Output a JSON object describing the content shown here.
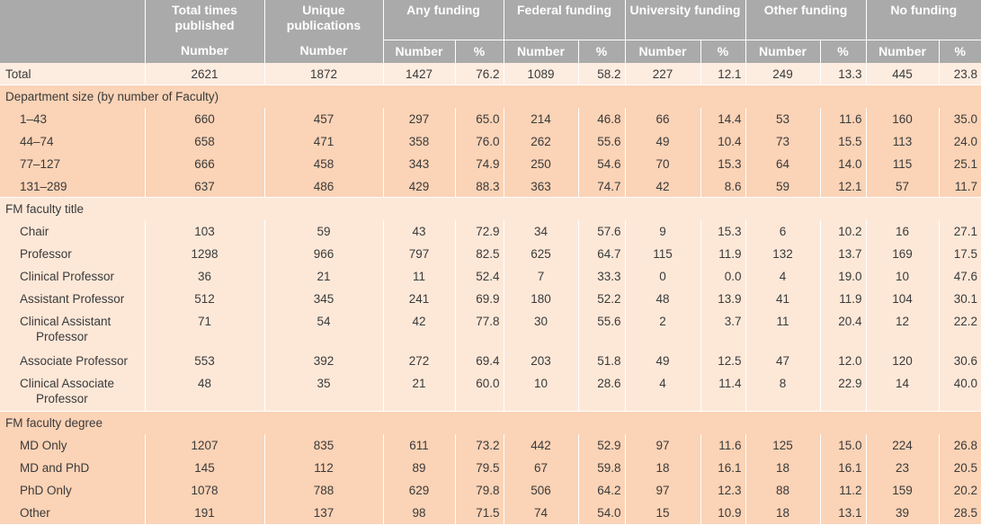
{
  "headers": {
    "top": [
      "Total times published",
      "Unique publications",
      "Any funding",
      "Federal funding",
      "University funding",
      "Other funding",
      "No funding"
    ],
    "number": "Number",
    "percent": "%"
  },
  "rows": [
    {
      "type": "total",
      "label": "Total",
      "values": [
        "2621",
        "1872",
        "1427",
        "76.2",
        "1089",
        "58.2",
        "227",
        "12.1",
        "249",
        "13.3",
        "445",
        "23.8"
      ]
    },
    {
      "type": "section",
      "label": "Department size (by number of Faculty)"
    },
    {
      "type": "data",
      "label": "1–43",
      "values": [
        "660",
        "457",
        "297",
        "65.0",
        "214",
        "46.8",
        "66",
        "14.4",
        "53",
        "11.6",
        "160",
        "35.0"
      ]
    },
    {
      "type": "data",
      "label": "44–74",
      "values": [
        "658",
        "471",
        "358",
        "76.0",
        "262",
        "55.6",
        "49",
        "10.4",
        "73",
        "15.5",
        "113",
        "24.0"
      ]
    },
    {
      "type": "data",
      "label": "77–127",
      "values": [
        "666",
        "458",
        "343",
        "74.9",
        "250",
        "54.6",
        "70",
        "15.3",
        "64",
        "14.0",
        "115",
        "25.1"
      ]
    },
    {
      "type": "data",
      "label": "131–289",
      "values": [
        "637",
        "486",
        "429",
        "88.3",
        "363",
        "74.7",
        "42",
        "8.6",
        "59",
        "12.1",
        "57",
        "11.7"
      ]
    },
    {
      "type": "section",
      "label": "FM faculty title"
    },
    {
      "type": "data",
      "label": "Chair",
      "values": [
        "103",
        "59",
        "43",
        "72.9",
        "34",
        "57.6",
        "9",
        "15.3",
        "6",
        "10.2",
        "16",
        "27.1"
      ]
    },
    {
      "type": "data",
      "label": "Professor",
      "values": [
        "1298",
        "966",
        "797",
        "82.5",
        "625",
        "64.7",
        "115",
        "11.9",
        "132",
        "13.7",
        "169",
        "17.5"
      ]
    },
    {
      "type": "data",
      "label": "Clinical Professor",
      "values": [
        "36",
        "21",
        "11",
        "52.4",
        "7",
        "33.3",
        "0",
        "0.0",
        "4",
        "19.0",
        "10",
        "47.6"
      ]
    },
    {
      "type": "data",
      "label": "Assistant Professor",
      "values": [
        "512",
        "345",
        "241",
        "69.9",
        "180",
        "52.2",
        "48",
        "13.9",
        "41",
        "11.9",
        "104",
        "30.1"
      ]
    },
    {
      "type": "data2",
      "label": "Clinical Assistant",
      "label2": "Professor",
      "values": [
        "71",
        "54",
        "42",
        "77.8",
        "30",
        "55.6",
        "2",
        "3.7",
        "11",
        "20.4",
        "12",
        "22.2"
      ]
    },
    {
      "type": "data",
      "label": "Associate Professor",
      "values": [
        "553",
        "392",
        "272",
        "69.4",
        "203",
        "51.8",
        "49",
        "12.5",
        "47",
        "12.0",
        "120",
        "30.6"
      ]
    },
    {
      "type": "data2",
      "label": "Clinical Associate",
      "label2": "Professor",
      "values": [
        "48",
        "35",
        "21",
        "60.0",
        "10",
        "28.6",
        "4",
        "11.4",
        "8",
        "22.9",
        "14",
        "40.0"
      ]
    },
    {
      "type": "section",
      "label": "FM faculty degree"
    },
    {
      "type": "data",
      "label": "MD Only",
      "values": [
        "1207",
        "835",
        "611",
        "73.2",
        "442",
        "52.9",
        "97",
        "11.6",
        "125",
        "15.0",
        "224",
        "26.8"
      ]
    },
    {
      "type": "data",
      "label": "MD and PhD",
      "values": [
        "145",
        "112",
        "89",
        "79.5",
        "67",
        "59.8",
        "18",
        "16.1",
        "18",
        "16.1",
        "23",
        "20.5"
      ]
    },
    {
      "type": "data",
      "label": "PhD Only",
      "values": [
        "1078",
        "788",
        "629",
        "79.8",
        "506",
        "64.2",
        "97",
        "12.3",
        "88",
        "11.2",
        "159",
        "20.2"
      ]
    },
    {
      "type": "data",
      "label": "Other",
      "values": [
        "191",
        "137",
        "98",
        "71.5",
        "74",
        "54.0",
        "15",
        "10.9",
        "18",
        "13.1",
        "39",
        "28.5"
      ]
    }
  ],
  "colors": {
    "header": "#aaaaaa",
    "light_row": "#fde8d8",
    "dark_row": "#fbd3b6"
  }
}
